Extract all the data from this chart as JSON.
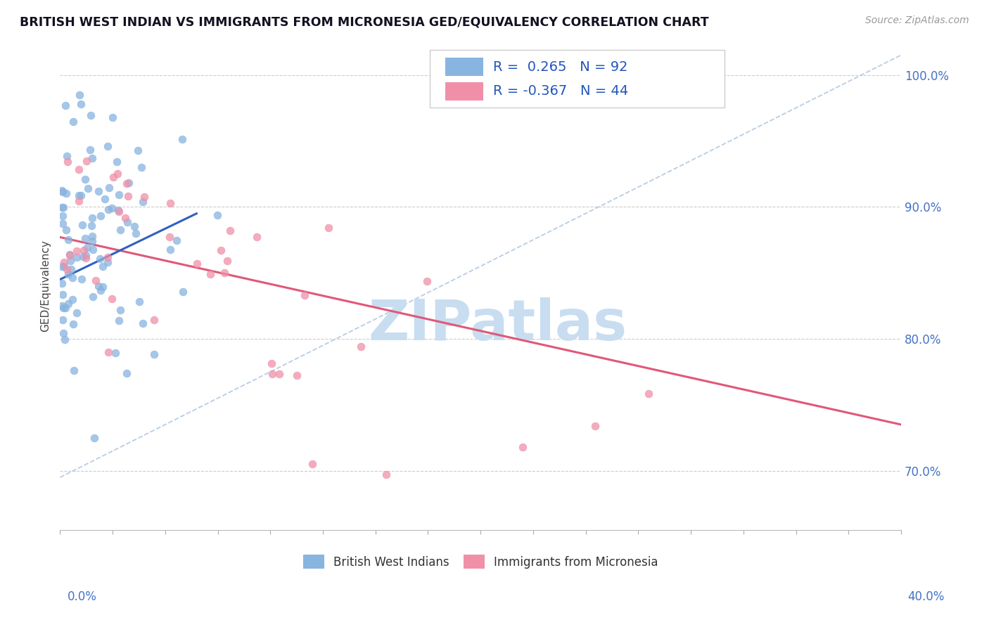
{
  "title": "BRITISH WEST INDIAN VS IMMIGRANTS FROM MICRONESIA GED/EQUIVALENCY CORRELATION CHART",
  "source": "Source: ZipAtlas.com",
  "legend_label1": "British West Indians",
  "legend_label2": "Immigrants from Micronesia",
  "r1": "0.265",
  "n1": "92",
  "r2": "-0.367",
  "n2": "44",
  "color_blue": "#88b4e0",
  "color_pink": "#f090a8",
  "trend_blue": "#3060c0",
  "trend_pink": "#e05878",
  "diag_color": "#b0c8e0",
  "x_min": 0.0,
  "x_max": 0.4,
  "y_min": 0.655,
  "y_max": 1.025,
  "yticks": [
    0.7,
    0.8,
    0.9,
    1.0
  ],
  "ytick_labels": [
    "70.0%",
    "80.0%",
    "90.0%",
    "100.0%"
  ],
  "watermark": "ZIPatlas",
  "watermark_color": "#c8ddf0",
  "ylabel_label": "GED/Equivalency"
}
